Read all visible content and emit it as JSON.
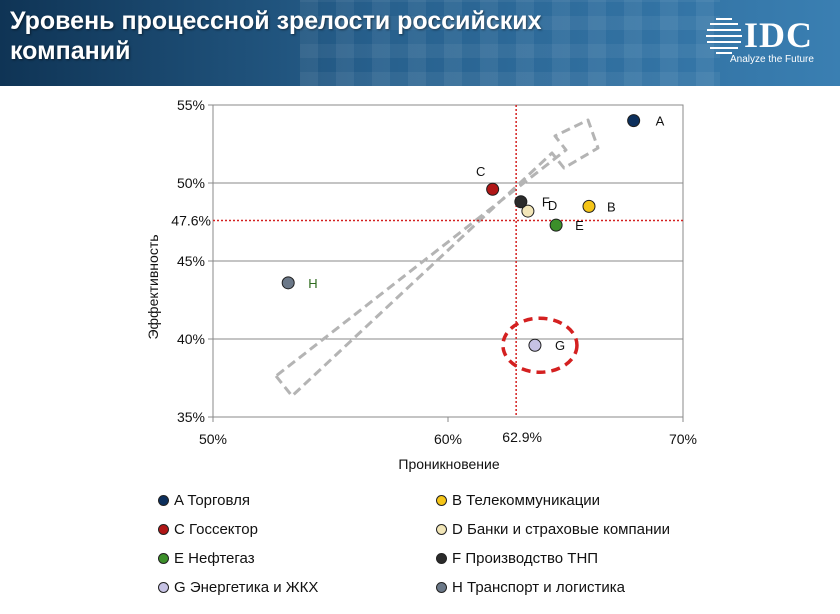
{
  "header": {
    "title": "Уровень процессной зрелости российских компаний",
    "logo_text": "IDC",
    "logo_tagline": "Analyze the Future"
  },
  "chart_data": {
    "type": "scatter",
    "title": "",
    "xlabel": "Проникновение",
    "ylabel": "Эффективность",
    "xlim": [
      50,
      70
    ],
    "ylim": [
      35,
      55
    ],
    "x_ticks": [
      {
        "value": 50,
        "label": "50%"
      },
      {
        "value": 60,
        "label": "60%"
      },
      {
        "value": 70,
        "label": "70%"
      }
    ],
    "y_ticks": [
      {
        "value": 35,
        "label": "35%"
      },
      {
        "value": 40,
        "label": "40%"
      },
      {
        "value": 45,
        "label": "45%"
      },
      {
        "value": 50,
        "label": "50%"
      },
      {
        "value": 55,
        "label": "55%"
      }
    ],
    "grid": "horizontal",
    "reference_lines": [
      {
        "axis": "x",
        "value": 62.9,
        "label": "62.9%",
        "color": "#d42020"
      },
      {
        "axis": "y",
        "value": 47.6,
        "label": "47.6%",
        "color": "#d42020"
      }
    ],
    "points": [
      {
        "id": "A",
        "x": 67.9,
        "y": 54.0,
        "color": "#0c2f5c",
        "label_color": "#111111"
      },
      {
        "id": "B",
        "x": 66.0,
        "y": 48.5,
        "color": "#f5c518",
        "label_color": "#111111"
      },
      {
        "id": "C",
        "x": 61.9,
        "y": 49.6,
        "color": "#b01616",
        "label_color": "#111111"
      },
      {
        "id": "D",
        "x": 63.4,
        "y": 48.2,
        "color": "#f2e6b8",
        "label_color": "#111111"
      },
      {
        "id": "E",
        "x": 64.6,
        "y": 47.3,
        "color": "#3c8f2a",
        "label_color": "#111111"
      },
      {
        "id": "F",
        "x": 63.1,
        "y": 48.8,
        "color": "#2b2b2b",
        "label_color": "#111111"
      },
      {
        "id": "G",
        "x": 63.7,
        "y": 39.6,
        "color": "#c6c2e4",
        "label_color": "#111111"
      },
      {
        "id": "H",
        "x": 53.2,
        "y": 43.6,
        "color": "#6b7888",
        "label_color": "#2e6b1e"
      }
    ],
    "annotations": [
      {
        "type": "trend-arrow",
        "style": "dashed gray outline",
        "direction": "up-right"
      },
      {
        "type": "highlight-ellipse",
        "target": "G",
        "style": "dashed red"
      }
    ],
    "legend": {
      "placement": "bottom",
      "items": [
        {
          "id": "A",
          "label": "A Торговля",
          "color": "#0c2f5c"
        },
        {
          "id": "B",
          "label": "B Телекоммуникации",
          "color": "#f5c518"
        },
        {
          "id": "C",
          "label": "C Госсектор",
          "color": "#b01616"
        },
        {
          "id": "D",
          "label": "D Банки и страховые компании",
          "color": "#f2e6b8"
        },
        {
          "id": "E",
          "label": "E Нефтегаз",
          "color": "#3c8f2a"
        },
        {
          "id": "F",
          "label": "F Производство ТНП",
          "color": "#2b2b2b"
        },
        {
          "id": "G",
          "label": "G Энергетика  и ЖКХ",
          "color": "#c6c2e4"
        },
        {
          "id": "H",
          "label": "H Транспорт и логистика",
          "color": "#6b7888"
        }
      ]
    }
  }
}
